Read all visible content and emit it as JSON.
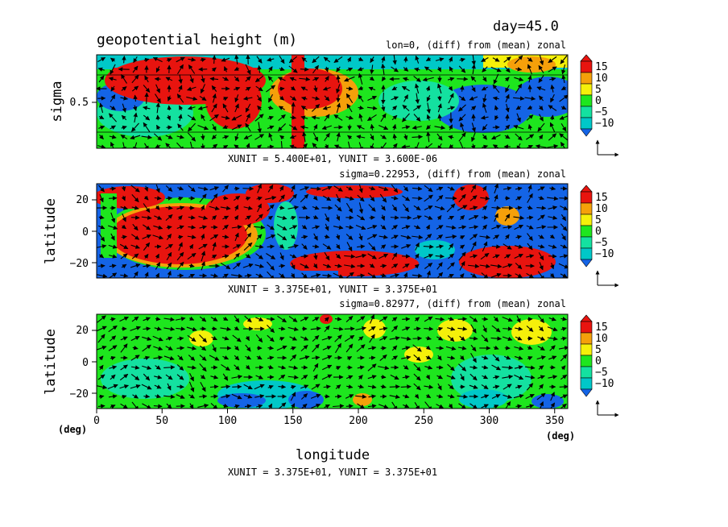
{
  "header": {
    "title": "geopotential height (m)",
    "day": "day=45.0"
  },
  "chart_data": [
    {
      "type": "heatmap",
      "subtitle": "lon=0, (diff) from (mean) zonal",
      "ylabel": "sigma",
      "yticks": [
        "0.5"
      ],
      "xlim": [
        0,
        360
      ],
      "ylim": [
        0,
        1
      ],
      "unit_note": "XUNIT = 5.400E+01, YUNIT = 3.600E-06",
      "colorbar": {
        "levels": [
          "15",
          "10",
          "5",
          "0",
          "−5",
          "−10"
        ]
      },
      "grid": false,
      "vectors": true
    },
    {
      "type": "heatmap",
      "subtitle": "sigma=0.22953, (diff) from (mean) zonal",
      "ylabel": "latitude",
      "yticks": [
        "20",
        "0",
        "−20"
      ],
      "xlim": [
        0,
        360
      ],
      "ylim": [
        -30,
        30
      ],
      "unit_note": "XUNIT = 3.375E+01, YUNIT = 3.375E+01",
      "colorbar": {
        "levels": [
          "15",
          "10",
          "5",
          "0",
          "−5",
          "−10"
        ]
      },
      "grid": false,
      "vectors": true
    },
    {
      "type": "heatmap",
      "subtitle": "sigma=0.82977, (diff) from (mean) zonal",
      "ylabel": "latitude",
      "yticks": [
        "20",
        "0",
        "−20"
      ],
      "xlabel": "longitude",
      "xticks": [
        "0",
        "50",
        "100",
        "150",
        "200",
        "250",
        "300",
        "350"
      ],
      "x_unit_left": "(deg)",
      "x_unit_right": "(deg)",
      "xlim": [
        0,
        360
      ],
      "ylim": [
        -30,
        30
      ],
      "unit_note": "XUNIT = 3.375E+01, YUNIT = 3.375E+01",
      "colorbar": {
        "levels": [
          "15",
          "10",
          "5",
          "0",
          "−5",
          "−10"
        ]
      },
      "grid": false,
      "vectors": true
    }
  ],
  "colors": {
    "red": "#e8140f",
    "orange": "#f5a00a",
    "yellow": "#f5f00a",
    "green": "#1ee61e",
    "cyan": "#14e1a0",
    "teal": "#00c8c8",
    "blue": "#1464e6"
  }
}
